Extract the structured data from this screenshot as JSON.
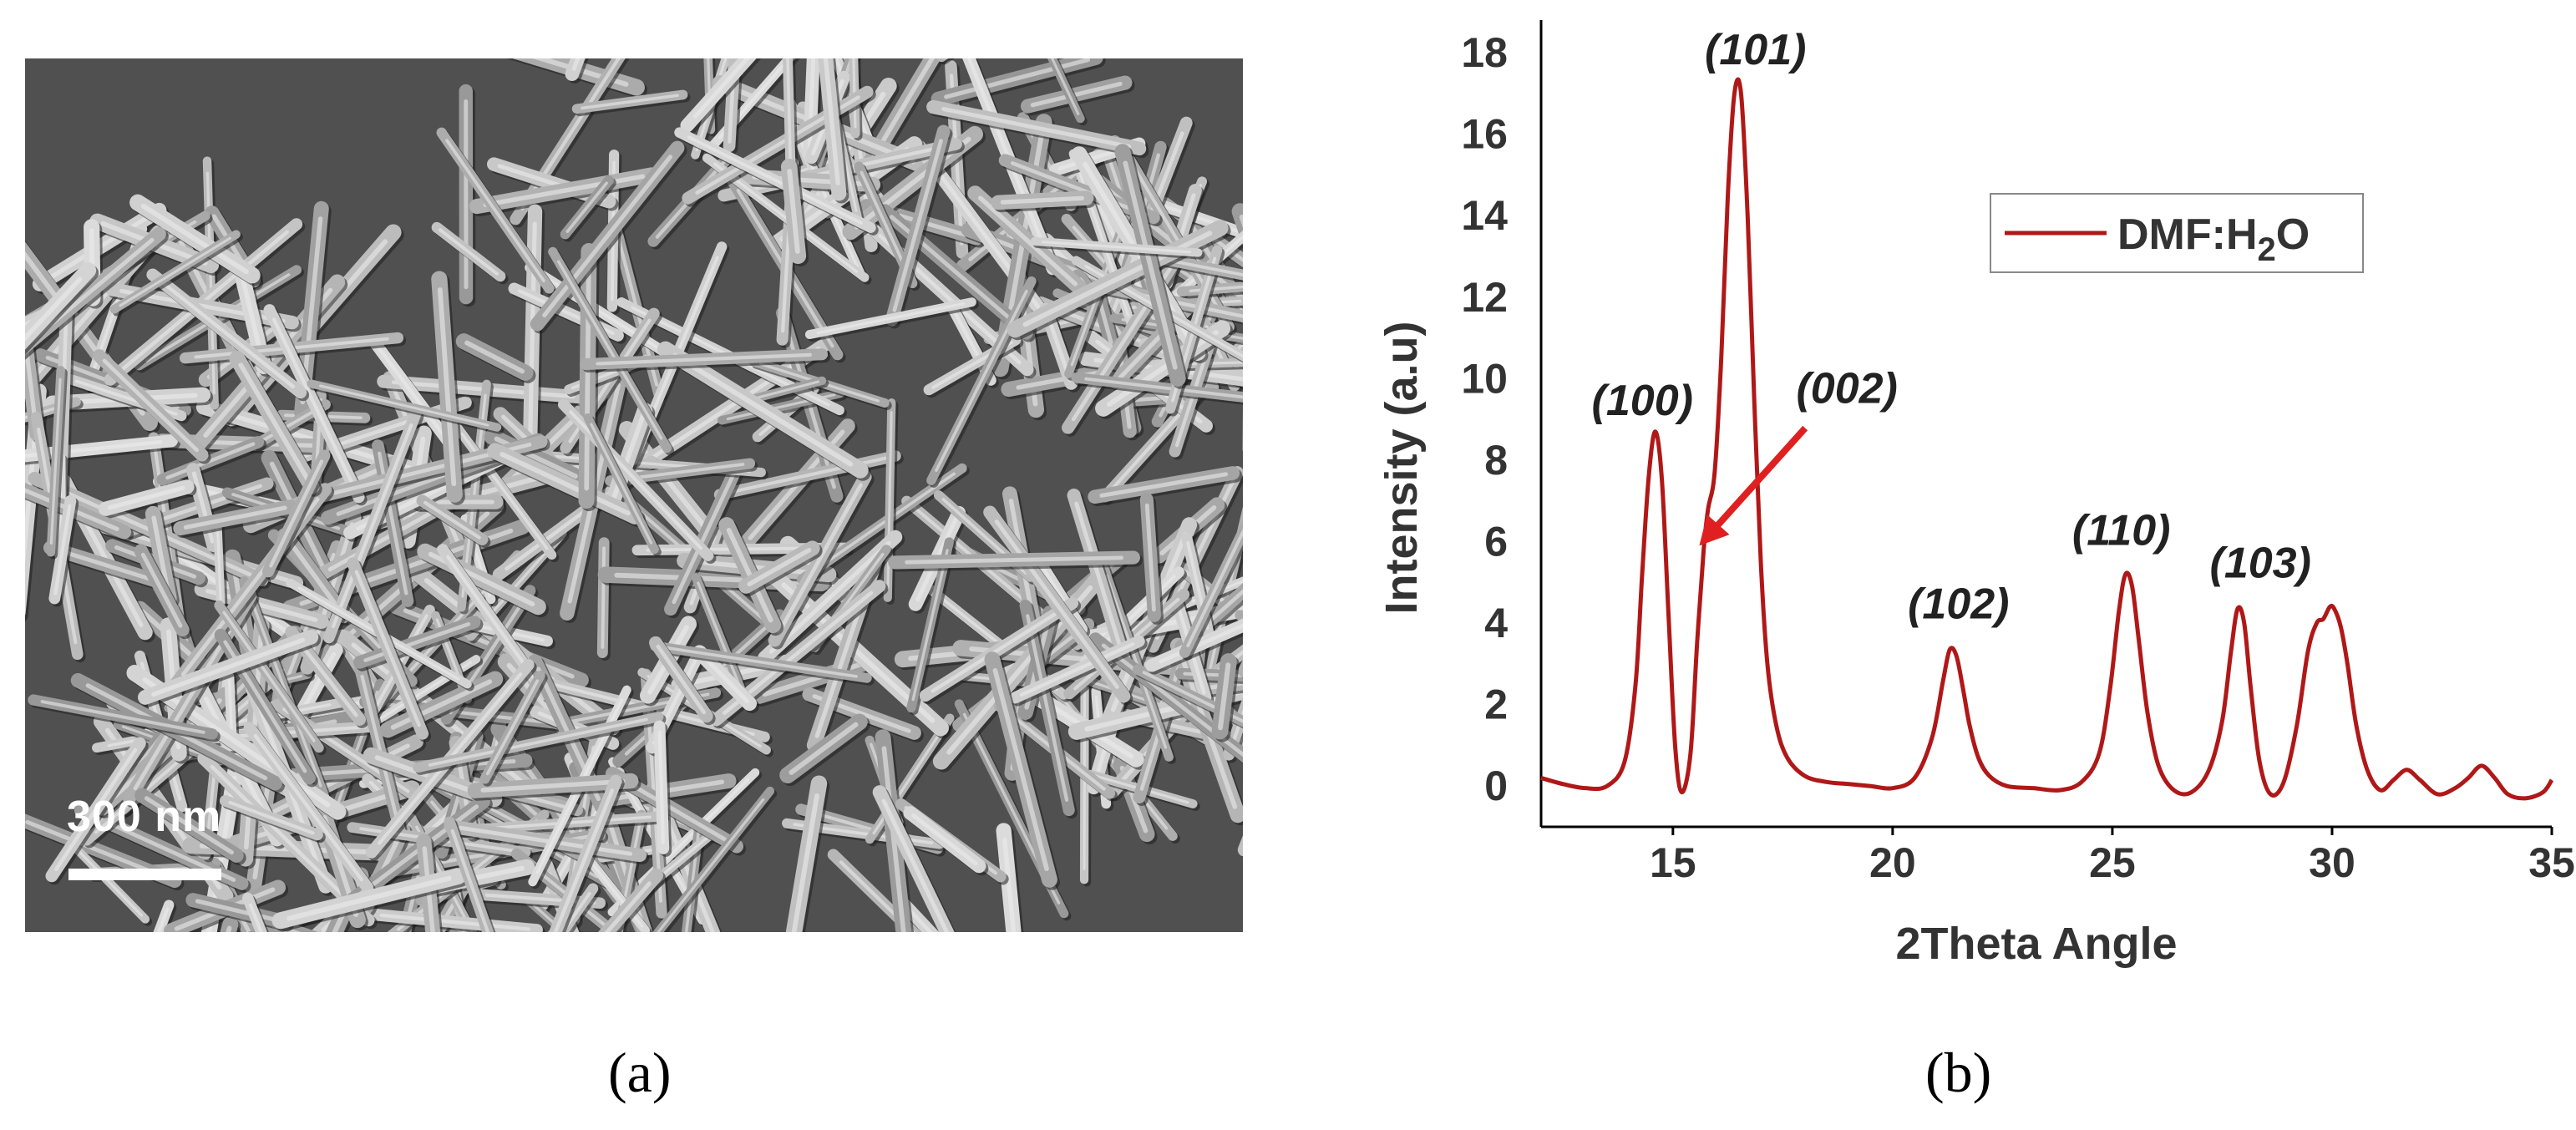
{
  "panel_a": {
    "caption": "(a)",
    "scale_bar_label": "300 nm"
  },
  "panel_b": {
    "caption": "(b)"
  },
  "colors": {
    "line": "#b01818",
    "arrow": "#e02020",
    "sem_background": "#505050"
  },
  "chart_data": {
    "type": "line",
    "xlabel": "2Theta Angle",
    "ylabel": "Intensity (a.u)",
    "xlim": [
      12,
      35
    ],
    "ylim": [
      -1,
      18.8
    ],
    "x_ticks": [
      15,
      20,
      25,
      30,
      35
    ],
    "y_ticks": [
      0,
      2,
      4,
      6,
      8,
      10,
      12,
      14,
      16,
      18
    ],
    "grid": false,
    "legend_position": "top-right",
    "series": [
      {
        "name": "DMF:H2O",
        "x": [
          12,
          12.5,
          13,
          13.5,
          13.9,
          14.15,
          14.3,
          14.45,
          14.6,
          14.75,
          14.9,
          15.05,
          15.2,
          15.4,
          15.55,
          15.7,
          15.8,
          15.95,
          16.1,
          16.25,
          16.4,
          16.55,
          16.7,
          16.85,
          17.0,
          17.15,
          17.35,
          17.6,
          18.0,
          18.5,
          19.0,
          19.5,
          20.0,
          20.5,
          20.9,
          21.15,
          21.3,
          21.45,
          21.6,
          21.75,
          21.95,
          22.2,
          22.6,
          23.2,
          23.8,
          24.3,
          24.7,
          24.95,
          25.15,
          25.3,
          25.45,
          25.6,
          25.8,
          26.05,
          26.4,
          26.8,
          27.2,
          27.5,
          27.7,
          27.85,
          28.0,
          28.15,
          28.35,
          28.6,
          28.9,
          29.2,
          29.45,
          29.65,
          29.8,
          29.95,
          30.05,
          30.2,
          30.35,
          30.55,
          30.8,
          31.1,
          31.4,
          31.7,
          32.0,
          32.4,
          32.8,
          33.1,
          33.4,
          33.7,
          34.0,
          34.4,
          34.8,
          35.0
        ],
        "y": [
          0.2,
          0.05,
          -0.05,
          0.0,
          0.6,
          2.5,
          5.2,
          7.6,
          8.7,
          7.5,
          4.2,
          1.0,
          -0.15,
          0.8,
          3.5,
          5.8,
          6.8,
          7.7,
          10.5,
          14.5,
          17.0,
          17.0,
          14.0,
          9.5,
          5.5,
          3.0,
          1.5,
          0.7,
          0.25,
          0.1,
          0.05,
          0.0,
          -0.05,
          0.2,
          1.2,
          2.6,
          3.35,
          3.2,
          2.4,
          1.5,
          0.7,
          0.25,
          0.0,
          -0.05,
          -0.1,
          0.1,
          0.8,
          2.4,
          4.3,
          5.2,
          4.9,
          3.6,
          1.8,
          0.5,
          -0.1,
          -0.15,
          0.4,
          1.6,
          3.3,
          4.35,
          4.0,
          2.4,
          0.6,
          -0.2,
          0.1,
          1.5,
          3.3,
          4.0,
          4.1,
          4.4,
          4.35,
          3.9,
          3.0,
          1.5,
          0.4,
          -0.1,
          0.15,
          0.4,
          0.15,
          -0.2,
          -0.05,
          0.2,
          0.5,
          0.2,
          -0.2,
          -0.3,
          -0.15,
          0.15
        ]
      }
    ],
    "annotations": [
      {
        "text": "(100)",
        "x": 14.4,
        "y": 8.7
      },
      {
        "text": "(101)",
        "x": 16.5,
        "y": 17.0
      },
      {
        "text": "(002)",
        "x": 15.6,
        "y": 5.9,
        "arrow": true
      },
      {
        "text": "(102)",
        "x": 21.5,
        "y": 3.4
      },
      {
        "text": "(110)",
        "x": 25.3,
        "y": 5.2
      },
      {
        "text": "(103)",
        "x": 27.8,
        "y": 4.4
      }
    ]
  }
}
